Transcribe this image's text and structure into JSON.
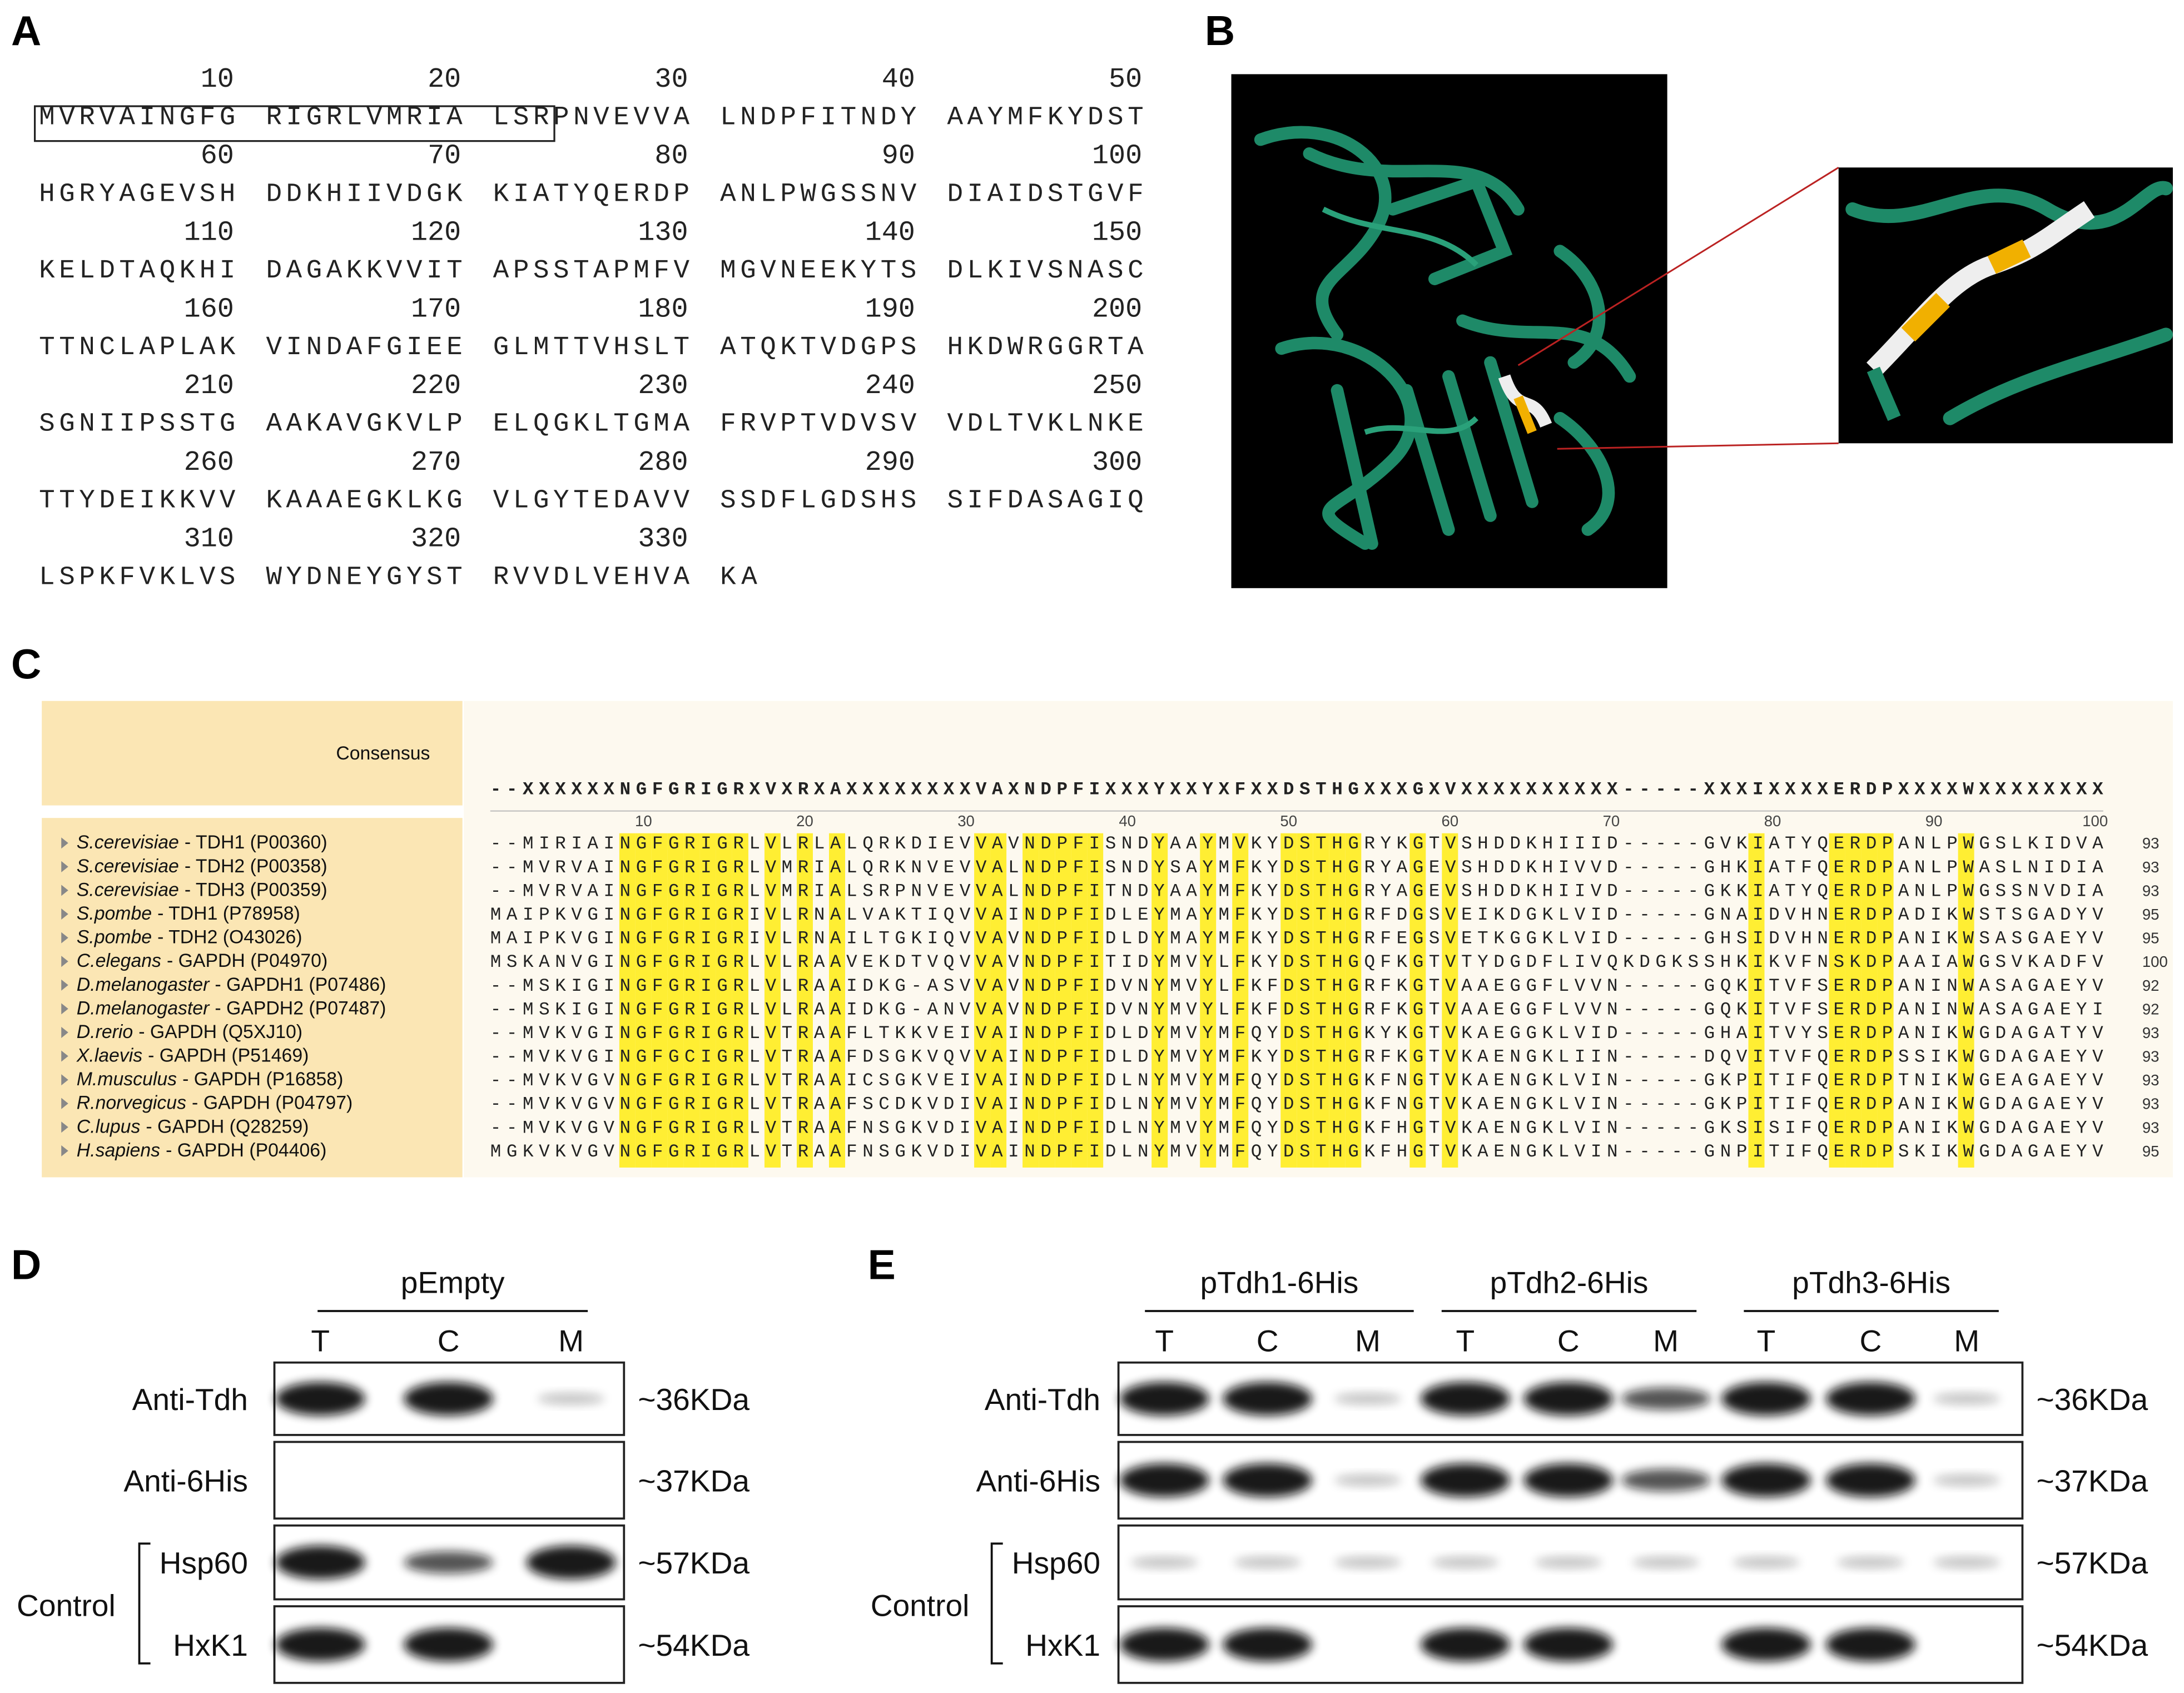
{
  "panels": {
    "a": "A",
    "b": "B",
    "c": "C",
    "d": "D",
    "e": "E"
  },
  "sequence": {
    "rows": [
      {
        "numbers": [
          10,
          20,
          30,
          40,
          50
        ],
        "blocks": [
          "MVRVAINGFG",
          "RIGRLVMRIA",
          "LSRPNVEVVA",
          "LNDPFITNDY",
          "AAYMFKYDST"
        ]
      },
      {
        "numbers": [
          60,
          70,
          80,
          90,
          100
        ],
        "blocks": [
          "HGRYAGEVSH",
          "DDKHIIVDGK",
          "KIATYQERDP",
          "ANLPWGSSNV",
          "DIAIDSTGVF"
        ]
      },
      {
        "numbers": [
          110,
          120,
          130,
          140,
          150
        ],
        "blocks": [
          "KELDTAQKHI",
          "DAGAKKVVIT",
          "APSSTAPMFV",
          "MGVNEEKYTS",
          "DLKIVSNASC"
        ]
      },
      {
        "numbers": [
          160,
          170,
          180,
          190,
          200
        ],
        "blocks": [
          "TTNCLAPLAK",
          "VINDAFGIEE",
          "GLMTTVHSLT",
          "ATQKTVDGPS",
          "HKDWRGGRTA"
        ]
      },
      {
        "numbers": [
          210,
          220,
          230,
          240,
          250
        ],
        "blocks": [
          "SGNIIPSSTG",
          "AAKAVGKVLP",
          "ELQGKLTGMA",
          "FRVPTVDVSV",
          "VDLTVKLNKE"
        ]
      },
      {
        "numbers": [
          260,
          270,
          280,
          290,
          300
        ],
        "blocks": [
          "TTYDEIKKVV",
          "KAAAEGKLKG",
          "VLGYTEDAVV",
          "SSDFLGDSHS",
          "SIFDASAGIQ"
        ]
      },
      {
        "numbers": [
          310,
          320,
          330
        ],
        "blocks": [
          "LSPKFVKLVS",
          "WYDNEYGYST",
          "RVVDLVEHVA",
          "KA"
        ]
      }
    ]
  },
  "alignment": {
    "consensus_label": "Consensus",
    "consensus": "--XXXXXXNGFGRIGRXVXRXAXXXXXXXXVAXNDPFIXXXYXXYXFXXDSTHGXXXGXVXXXXXXXXXX-----XXXIXXXXERDPXXXXWXXXXXXXX",
    "ruler": [
      10,
      20,
      30,
      40,
      50,
      60,
      70,
      80,
      90,
      100
    ],
    "rows": [
      {
        "species": "S.cerevisiae",
        "protein": "- TDH1 (P00360)",
        "sequence": "--MIRIAINGFGRIGRLVLRLALQRKDIEVVAVNDPFISNDYAAYMVKYDSTHGRYKGTVSHDDKHIIID-----GVKIATYQERDPANLPWGSLKIDVA",
        "end": 93
      },
      {
        "species": "S.cerevisiae",
        "protein": "- TDH2 (P00358)",
        "sequence": "--MVRVAINGFGRIGRLVMRIALQRKNVEVVALNDPFISNDYSAYMFKYDSTHGRYAGEVSHDDKHIVVD-----GHKIATFQERDPANLPWASLNIDIA",
        "end": 93
      },
      {
        "species": "S.cerevisiae",
        "protein": "- TDH3 (P00359)",
        "sequence": "--MVRVAINGFGRIGRLVMRIALSRPNVEVVALNDPFITNDYAAYMFKYDSTHGRYAGEVSHDDKHIIVD-----GKKIATYQERDPANLPWGSSNVDIA",
        "end": 93
      },
      {
        "species": "S.pombe",
        "protein": "- TDH1 (P78958)",
        "sequence": "MAIPKVGINGFGRIGRIVLRNALVAKTIQVVAINDPFIDLEYMAYMFKYDSTHGRFDGSVEIKDGKLVID-----GNAIDVHNERDPADIKWSTSGADYV",
        "end": 95
      },
      {
        "species": "S.pombe",
        "protein": "- TDH2 (O43026)",
        "sequence": "MAIPKVGINGFGRIGRIVLRNAILTGKIQVVAVNDPFIDLDYMAYMFKYDSTHGRFEGSVETKGGKLVID-----GHSIDVHNERDPANIKWSASGAEYV",
        "end": 95
      },
      {
        "species": "C.elegans",
        "protein": "- GAPDH (P04970)",
        "sequence": "MSKANVGINGFGRIGRLVLRAAVEKDTVQVVAVNDPFITIDYMVYLFKYDSTHGQFKGTVTYDGDFLIVQKDGKSSHKIKVFNSKDPAAIAWGSVKADFV",
        "end": 100
      },
      {
        "species": "D.melanogaster",
        "protein": "- GAPDH1 (P07486)",
        "sequence": "--MSKIGINGFGRIGRLVLRAAIDKG-ASVVAVNDPFIDVNYMVYLFKFDSTHGRFKGTVAAEGGFLVVN-----GQKITVFSERDPANINWASAGAEYV",
        "end": 92
      },
      {
        "species": "D.melanogaster",
        "protein": "- GAPDH2 (P07487)",
        "sequence": "--MSKIGINGFGRIGRLVLRAAIDKG-ANVVAVNDPFIDVNYMVYLFKFDSTHGRFKGTVAAEGGFLVVN-----GQKITVFSERDPANINWASAGAEYI",
        "end": 92
      },
      {
        "species": "D.rerio",
        "protein": "- GAPDH (Q5XJ10)",
        "sequence": "--MVKVGINGFGRIGRLVTRAAFLTKKVEIVAINDPFIDLDYMVYMFQYDSTHGKYKGTVKAEGGKLVID-----GHAITVYSERDPANIKWGDAGATYV",
        "end": 93
      },
      {
        "species": "X.laevis",
        "protein": "- GAPDH (P51469)",
        "sequence": "--MVKVGINGFGCIGRLVTRAAFDSGKVQVVAINDPFIDLDYMVYMFKYDSTHGRFKGTVKAENGKLIIN-----DQVITVFQERDPSSIKWGDAGAEYV",
        "end": 93
      },
      {
        "species": "M.musculus",
        "protein": "- GAPDH (P16858)",
        "sequence": "--MVKVGVNGFGRIGRLVTRAAICSGKVEIVAINDPFIDLNYMVYMFQYDSTHGKFNGTVKAENGKLVIN-----GKPITIFQERDPTNIKWGEAGAEYV",
        "end": 93
      },
      {
        "species": "R.norvegicus",
        "protein": "- GAPDH (P04797)",
        "sequence": "--MVKVGVNGFGRIGRLVTRAAFSCDKVDIVAINDPFIDLNYMVYMFQYDSTHGKFNGTVKAENGKLVIN-----GKPITIFQERDPANIKWGDAGAEYV",
        "end": 93
      },
      {
        "species": "C.lupus",
        "protein": "- GAPDH (Q28259)",
        "sequence": "--MVKVGVNGFGRIGRLVTRAAFNSGKVDIVAINDPFIDLNYMVYMFQYDSTHGKFHGTVKAENGKLVIN-----GKSISIFQERDPANIKWGDAGAEYV",
        "end": 93
      },
      {
        "species": "H.sapiens",
        "protein": "- GAPDH (P04406)",
        "sequence": "MGKVKVGVNGFGRIGRLVTRAAFNSGKVDIVAINDPFIDLNYMVYMFQYDSTHGKFHGTVKAENGKLVIN-----GNPITIFQERDPSKIKWGDAGAEYV",
        "end": 95
      }
    ]
  },
  "blot_d": {
    "headers": [
      "pEmpty"
    ],
    "lanes": [
      "T",
      "C",
      "M"
    ],
    "rows": [
      "Anti-Tdh",
      "Anti-6His",
      "Hsp60",
      "HxK1"
    ],
    "group": "Control",
    "sizes": [
      "~36KDa",
      "~37KDa",
      "~57KDa",
      "~54KDa"
    ]
  },
  "blot_e": {
    "headers": [
      "pTdh1-6His",
      "pTdh2-6His",
      "pTdh3-6His"
    ],
    "lanes": [
      "T",
      "C",
      "M",
      "T",
      "C",
      "M",
      "T",
      "C",
      "M"
    ],
    "rows": [
      "Anti-Tdh",
      "Anti-6His",
      "Hsp60",
      "HxK1"
    ],
    "group": "Control",
    "sizes": [
      "~36KDa",
      "~37KDa",
      "~57KDa",
      "~54KDa"
    ]
  }
}
